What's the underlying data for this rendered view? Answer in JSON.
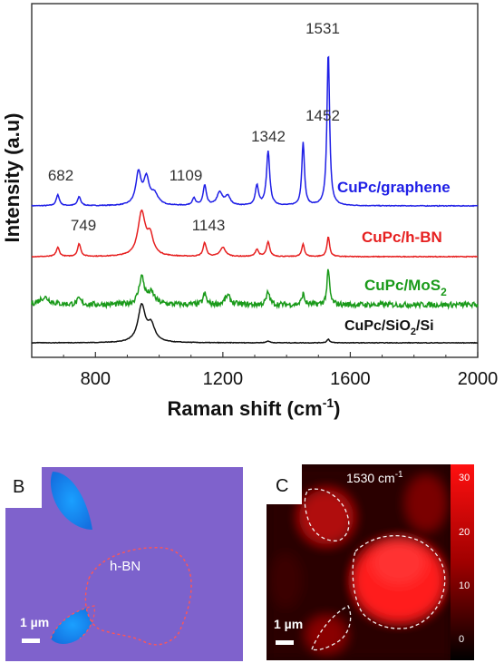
{
  "chart_data": {
    "type": "line",
    "xlabel": "Raman shift (cm",
    "xlabel_sup": "-1",
    "xlabel_end": ")",
    "ylabel": "Intensity (a.u)",
    "xlim": [
      600,
      2000
    ],
    "x_ticks": [
      "800",
      "1200",
      "1600",
      "2000"
    ],
    "y_ticks_shown": false,
    "series": [
      {
        "name": "CuPc/graphene",
        "color": "#1f1fe6",
        "noise": 0.4,
        "peaks": [
          [
            682,
            12,
            6
          ],
          [
            749,
            10,
            6
          ],
          [
            935,
            35,
            10
          ],
          [
            960,
            28,
            10
          ],
          [
            985,
            12,
            14
          ],
          [
            1109,
            8,
            6
          ],
          [
            1143,
            22,
            6
          ],
          [
            1190,
            14,
            10
          ],
          [
            1215,
            10,
            10
          ],
          [
            1307,
            22,
            6
          ],
          [
            1342,
            60,
            6
          ],
          [
            1452,
            70,
            5
          ],
          [
            1531,
            170,
            5
          ]
        ]
      },
      {
        "name": "CuPc/h-BN",
        "color": "#e62020",
        "noise": 0.4,
        "peaks": [
          [
            682,
            10,
            6
          ],
          [
            749,
            14,
            6
          ],
          [
            945,
            48,
            14
          ],
          [
            972,
            20,
            12
          ],
          [
            1143,
            15,
            6
          ],
          [
            1200,
            10,
            10
          ],
          [
            1307,
            8,
            6
          ],
          [
            1342,
            16,
            6
          ],
          [
            1452,
            14,
            5
          ],
          [
            1531,
            22,
            5
          ]
        ]
      },
      {
        "name": "CuPc/MoS",
        "name_sub": "2",
        "color": "#1a9a1a",
        "noise": 3.0,
        "peaks": [
          [
            640,
            8,
            20
          ],
          [
            749,
            6,
            8
          ],
          [
            945,
            30,
            10
          ],
          [
            975,
            12,
            14
          ],
          [
            1143,
            12,
            6
          ],
          [
            1215,
            10,
            10
          ],
          [
            1342,
            14,
            6
          ],
          [
            1452,
            12,
            5
          ],
          [
            1531,
            38,
            5
          ]
        ]
      },
      {
        "name": "CuPc/SiO",
        "name_sub": "2",
        "name_end": "/Si",
        "color": "#111111",
        "noise": 0.3,
        "peaks": [
          [
            945,
            40,
            14
          ],
          [
            975,
            18,
            14
          ],
          [
            1342,
            2,
            6
          ],
          [
            1531,
            4,
            5
          ]
        ]
      }
    ],
    "annotations": [
      "682",
      "749",
      "1109",
      "1143",
      "1342",
      "1452",
      "1531"
    ]
  },
  "panel_b": {
    "letter": "B",
    "flake_label": "h-BN",
    "scale_label": "1 µm"
  },
  "panel_c": {
    "letter": "C",
    "title": "1530 cm",
    "title_sup": "-1",
    "scale_label": "1 µm",
    "colorbar_ticks": [
      "30",
      "20",
      "10",
      "0"
    ]
  }
}
